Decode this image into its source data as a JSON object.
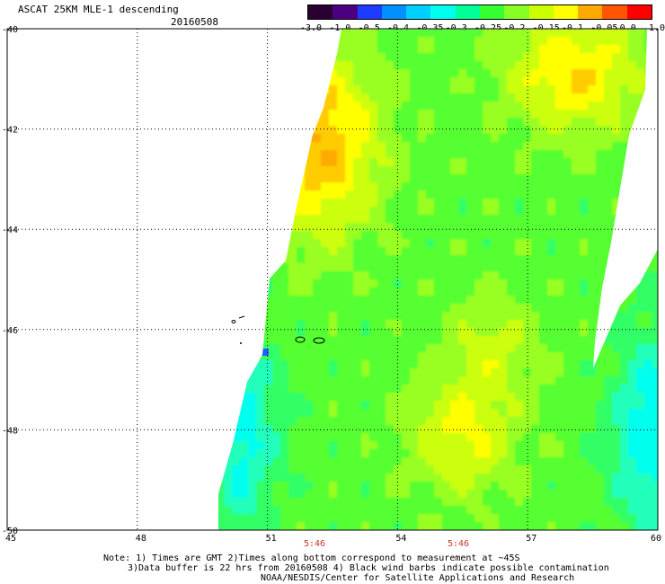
{
  "header": {
    "title": "ASCAT 25KM MLE-1 descending",
    "date": "20160508"
  },
  "colorbar": {
    "labels": [
      "-3.0",
      "-1.0",
      "-0.5",
      "-0.4",
      "-0.35",
      "-0.3",
      "-0.25",
      "-0.2",
      "-0.15",
      "-0.1",
      "-0.05",
      "0.0",
      "1.0"
    ],
    "colors": [
      "#2a0033",
      "#4b0082",
      "#1e3cff",
      "#0090ff",
      "#00d0ff",
      "#00ffee",
      "#00ff99",
      "#33ff33",
      "#88ff22",
      "#ccff00",
      "#ffff00",
      "#ffaa00",
      "#ff5500",
      "#ff0000"
    ]
  },
  "map": {
    "lat_labels": [
      "-40",
      "-42",
      "-44",
      "-46",
      "-48",
      "-50"
    ],
    "lon_labels": [
      "45",
      "48",
      "51",
      "54",
      "57",
      "60"
    ],
    "lat_range": [
      -50,
      -40
    ],
    "lon_range": [
      45,
      60
    ],
    "swath_times": [
      "5:46",
      "5:46"
    ]
  },
  "notes": {
    "line1": "Note: 1) Times are GMT 2)Times along bottom correspond to measurement at ~45S",
    "line2": "3)Data buffer is 22 hrs from 20160508 4) Black wind barbs indicate possible contamination",
    "line3": "NOAA/NESDIS/Center for Satellite Applications and Research"
  }
}
